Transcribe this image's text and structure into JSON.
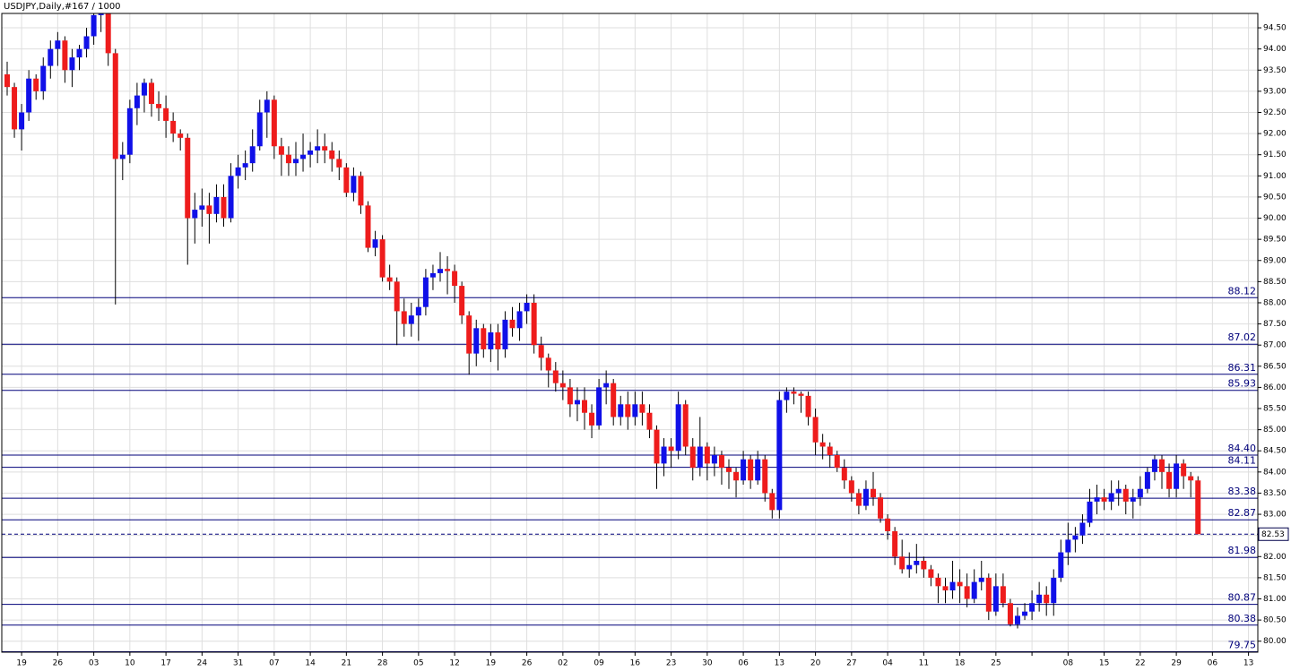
{
  "chart_data": {
    "type": "candlestick",
    "title": "USDJPY,Daily,#167 / 1000",
    "up_color": "#1010e8",
    "down_color": "#ee1c1c",
    "wick_color": "#000000",
    "level_color": "#00007a",
    "grid": true,
    "ylim": [
      79.74,
      94.84
    ],
    "yticks": [
      {
        "value": 80,
        "label": "80.00"
      },
      {
        "value": 80.5,
        "label": "80.50"
      },
      {
        "value": 81,
        "label": "81.00"
      },
      {
        "value": 81.5,
        "label": "81.50"
      },
      {
        "value": 82,
        "label": "82.00"
      },
      {
        "value": 82.5,
        "label": "82.50"
      },
      {
        "value": 83,
        "label": "83.00"
      },
      {
        "value": 83.5,
        "label": "83.50"
      },
      {
        "value": 84,
        "label": "84.00"
      },
      {
        "value": 84.5,
        "label": "84.50"
      },
      {
        "value": 85,
        "label": "85.00"
      },
      {
        "value": 85.5,
        "label": "85.50"
      },
      {
        "value": 86,
        "label": "86.00"
      },
      {
        "value": 86.5,
        "label": "86.50"
      },
      {
        "value": 87,
        "label": "87.00"
      },
      {
        "value": 87.5,
        "label": "87.50"
      },
      {
        "value": 88,
        "label": "88.00"
      },
      {
        "value": 88.5,
        "label": "88.50"
      },
      {
        "value": 89,
        "label": "89.00"
      },
      {
        "value": 89.5,
        "label": "89.50"
      },
      {
        "value": 90,
        "label": "90.00"
      },
      {
        "value": 90.5,
        "label": "90.50"
      },
      {
        "value": 91,
        "label": "91.00"
      },
      {
        "value": 91.5,
        "label": "91.50"
      },
      {
        "value": 92,
        "label": "92.00"
      },
      {
        "value": 92.5,
        "label": "92.50"
      },
      {
        "value": 93,
        "label": "93.00"
      },
      {
        "value": 93.5,
        "label": "93.50"
      },
      {
        "value": 94,
        "label": "94.00"
      },
      {
        "value": 94.5,
        "label": "94.50"
      }
    ],
    "xticks": [
      {
        "value": 2,
        "label": "19"
      },
      {
        "value": 7,
        "label": "26"
      },
      {
        "value": 12,
        "label": "03"
      },
      {
        "value": 17,
        "label": "10"
      },
      {
        "value": 22,
        "label": "17"
      },
      {
        "value": 27,
        "label": "24"
      },
      {
        "value": 32,
        "label": "31"
      },
      {
        "value": 37,
        "label": "07"
      },
      {
        "value": 42,
        "label": "14"
      },
      {
        "value": 47,
        "label": "21"
      },
      {
        "value": 52,
        "label": "28"
      },
      {
        "value": 57,
        "label": "05"
      },
      {
        "value": 62,
        "label": "12"
      },
      {
        "value": 67,
        "label": "19"
      },
      {
        "value": 72,
        "label": "26"
      },
      {
        "value": 77,
        "label": "02"
      },
      {
        "value": 82,
        "label": "09"
      },
      {
        "value": 87,
        "label": "16"
      },
      {
        "value": 92,
        "label": "23"
      },
      {
        "value": 97,
        "label": "30"
      },
      {
        "value": 102,
        "label": "06"
      },
      {
        "value": 107,
        "label": "13"
      },
      {
        "value": 112,
        "label": "20"
      },
      {
        "value": 117,
        "label": "27"
      },
      {
        "value": 122,
        "label": "04"
      },
      {
        "value": 127,
        "label": "11"
      },
      {
        "value": 132,
        "label": "18"
      },
      {
        "value": 137,
        "label": "25"
      },
      {
        "value": 142,
        "label": null
      },
      {
        "value": 147,
        "label": "08"
      },
      {
        "value": 152,
        "label": "15"
      },
      {
        "value": 157,
        "label": "22"
      },
      {
        "value": 162,
        "label": "29"
      },
      {
        "value": 167,
        "label": "06"
      },
      {
        "value": 172,
        "label": "13"
      }
    ],
    "levels": [
      88.12,
      87.02,
      86.31,
      85.93,
      {
        "value": 84.4,
        "label": "84.40"
      },
      84.11,
      83.38,
      82.87,
      81.98,
      80.87,
      80.38,
      79.75
    ],
    "current": 82.53,
    "ohlc": [
      [
        93.4,
        93.7,
        92.9,
        93.1
      ],
      [
        93.1,
        93.2,
        91.9,
        92.1
      ],
      [
        92.1,
        92.7,
        91.6,
        92.5
      ],
      [
        92.5,
        93.5,
        92.3,
        93.3
      ],
      [
        93.3,
        93.4,
        92.8,
        93.0
      ],
      [
        93.0,
        93.8,
        92.8,
        93.6
      ],
      [
        93.6,
        94.2,
        93.3,
        94.0
      ],
      [
        94.0,
        94.4,
        93.6,
        94.2
      ],
      [
        94.2,
        94.3,
        93.2,
        93.5
      ],
      [
        93.5,
        94.0,
        93.1,
        93.8
      ],
      [
        93.8,
        94.1,
        93.5,
        94.0
      ],
      [
        94.0,
        94.5,
        93.8,
        94.3
      ],
      [
        94.3,
        94.9,
        94.1,
        94.8
      ],
      [
        94.8,
        94.95,
        94.4,
        94.9
      ],
      [
        94.9,
        94.9,
        93.6,
        93.9
      ],
      [
        93.9,
        94.0,
        87.96,
        91.4
      ],
      [
        91.4,
        91.8,
        90.9,
        91.5
      ],
      [
        91.5,
        92.8,
        91.3,
        92.6
      ],
      [
        92.6,
        93.2,
        92.2,
        92.9
      ],
      [
        92.9,
        93.3,
        92.5,
        93.2
      ],
      [
        93.2,
        93.3,
        92.4,
        92.7
      ],
      [
        92.7,
        93.0,
        92.3,
        92.6
      ],
      [
        92.6,
        92.9,
        91.9,
        92.3
      ],
      [
        92.3,
        92.5,
        91.8,
        92.0
      ],
      [
        92.0,
        92.1,
        91.6,
        91.9
      ],
      [
        91.9,
        92.0,
        88.9,
        90.0
      ],
      [
        90.0,
        90.6,
        89.4,
        90.2
      ],
      [
        90.2,
        90.7,
        89.8,
        90.3
      ],
      [
        90.3,
        90.6,
        89.4,
        90.1
      ],
      [
        90.1,
        90.8,
        89.9,
        90.5
      ],
      [
        90.5,
        90.8,
        89.8,
        90.0
      ],
      [
        90.0,
        91.3,
        89.9,
        91.0
      ],
      [
        91.0,
        91.5,
        90.7,
        91.2
      ],
      [
        91.2,
        91.6,
        90.9,
        91.3
      ],
      [
        91.3,
        92.1,
        91.1,
        91.7
      ],
      [
        91.7,
        92.8,
        91.6,
        92.5
      ],
      [
        92.5,
        93.0,
        91.9,
        92.8
      ],
      [
        92.8,
        92.9,
        91.4,
        91.7
      ],
      [
        91.7,
        91.9,
        91.0,
        91.5
      ],
      [
        91.5,
        91.7,
        91.0,
        91.3
      ],
      [
        91.3,
        91.8,
        91.0,
        91.4
      ],
      [
        91.4,
        92.0,
        91.1,
        91.5
      ],
      [
        91.5,
        91.8,
        91.2,
        91.6
      ],
      [
        91.6,
        92.1,
        91.3,
        91.7
      ],
      [
        91.7,
        92.0,
        91.3,
        91.6
      ],
      [
        91.6,
        91.8,
        91.1,
        91.4
      ],
      [
        91.4,
        91.6,
        90.9,
        91.2
      ],
      [
        91.2,
        91.3,
        90.5,
        90.6
      ],
      [
        90.6,
        91.2,
        90.4,
        91.0
      ],
      [
        91.0,
        91.1,
        90.1,
        90.3
      ],
      [
        90.3,
        90.4,
        89.2,
        89.3
      ],
      [
        89.3,
        89.7,
        89.1,
        89.5
      ],
      [
        89.5,
        89.6,
        88.5,
        88.6
      ],
      [
        88.6,
        88.9,
        88.3,
        88.5
      ],
      [
        88.5,
        88.6,
        87.0,
        87.8
      ],
      [
        87.8,
        88.1,
        87.2,
        87.5
      ],
      [
        87.5,
        88.0,
        87.2,
        87.7
      ],
      [
        87.7,
        88.1,
        87.1,
        87.9
      ],
      [
        87.9,
        88.8,
        87.7,
        88.6
      ],
      [
        88.6,
        88.9,
        88.3,
        88.7
      ],
      [
        88.7,
        89.2,
        88.5,
        88.8
      ],
      [
        88.8,
        89.1,
        88.2,
        88.75
      ],
      [
        88.75,
        88.9,
        88.0,
        88.4
      ],
      [
        88.4,
        88.5,
        87.5,
        87.7
      ],
      [
        87.7,
        87.8,
        86.3,
        86.8
      ],
      [
        86.8,
        87.6,
        86.5,
        87.4
      ],
      [
        87.4,
        87.5,
        86.7,
        86.9
      ],
      [
        86.9,
        87.5,
        86.6,
        87.3
      ],
      [
        87.3,
        87.5,
        86.4,
        86.9
      ],
      [
        86.9,
        87.8,
        86.7,
        87.6
      ],
      [
        87.6,
        87.9,
        87.2,
        87.4
      ],
      [
        87.4,
        88.0,
        87.1,
        87.8
      ],
      [
        87.8,
        88.2,
        87.5,
        88.0
      ],
      [
        88.0,
        88.2,
        86.8,
        87.0
      ],
      [
        87.0,
        87.2,
        86.4,
        86.7
      ],
      [
        86.7,
        86.8,
        86.0,
        86.4
      ],
      [
        86.4,
        86.6,
        85.9,
        86.1
      ],
      [
        86.1,
        86.4,
        85.7,
        86.0
      ],
      [
        86.0,
        86.2,
        85.3,
        85.6
      ],
      [
        85.6,
        86.0,
        85.2,
        85.7
      ],
      [
        85.7,
        86.0,
        85.0,
        85.4
      ],
      [
        85.4,
        85.6,
        84.8,
        85.1
      ],
      [
        85.1,
        86.2,
        85.0,
        86.0
      ],
      [
        86.0,
        86.4,
        85.6,
        86.1
      ],
      [
        86.1,
        86.2,
        85.1,
        85.3
      ],
      [
        85.3,
        85.8,
        85.1,
        85.6
      ],
      [
        85.6,
        85.9,
        85.0,
        85.3
      ],
      [
        85.3,
        85.9,
        85.1,
        85.6
      ],
      [
        85.6,
        85.9,
        85.1,
        85.4
      ],
      [
        85.4,
        85.6,
        84.8,
        85.0
      ],
      [
        85.0,
        85.1,
        83.6,
        84.2
      ],
      [
        84.2,
        84.8,
        83.9,
        84.6
      ],
      [
        84.6,
        84.8,
        84.1,
        84.5
      ],
      [
        84.5,
        85.9,
        84.3,
        85.6
      ],
      [
        85.6,
        85.7,
        84.4,
        84.6
      ],
      [
        84.6,
        84.8,
        83.8,
        84.1
      ],
      [
        84.1,
        85.3,
        83.9,
        84.6
      ],
      [
        84.6,
        84.7,
        83.8,
        84.2
      ],
      [
        84.2,
        84.6,
        83.9,
        84.4
      ],
      [
        84.4,
        84.5,
        83.7,
        84.1
      ],
      [
        84.1,
        84.3,
        83.6,
        84.0
      ],
      [
        84.0,
        84.1,
        83.4,
        83.8
      ],
      [
        83.8,
        84.5,
        83.7,
        84.3
      ],
      [
        84.3,
        84.4,
        83.6,
        83.8
      ],
      [
        83.8,
        84.5,
        83.7,
        84.3
      ],
      [
        84.3,
        84.4,
        83.3,
        83.5
      ],
      [
        83.5,
        83.6,
        82.9,
        83.1
      ],
      [
        83.1,
        85.9,
        82.9,
        85.7
      ],
      [
        85.7,
        86.0,
        85.4,
        85.9
      ],
      [
        85.9,
        86.0,
        85.6,
        85.85
      ],
      [
        85.85,
        85.9,
        85.4,
        85.8
      ],
      [
        85.8,
        85.9,
        85.1,
        85.3
      ],
      [
        85.3,
        85.5,
        84.4,
        84.7
      ],
      [
        84.7,
        84.9,
        84.3,
        84.6
      ],
      [
        84.6,
        84.7,
        84.1,
        84.4
      ],
      [
        84.4,
        84.5,
        84.0,
        84.1
      ],
      [
        84.1,
        84.3,
        83.6,
        83.8
      ],
      [
        83.8,
        83.9,
        83.3,
        83.5
      ],
      [
        83.5,
        83.6,
        83.0,
        83.2
      ],
      [
        83.2,
        83.8,
        83.1,
        83.6
      ],
      [
        83.6,
        84.0,
        83.2,
        83.4
      ],
      [
        83.4,
        83.5,
        82.8,
        82.9
      ],
      [
        82.9,
        83.0,
        82.4,
        82.6
      ],
      [
        82.6,
        82.7,
        81.8,
        82.0
      ],
      [
        82.0,
        82.4,
        81.6,
        81.7
      ],
      [
        81.7,
        82.1,
        81.5,
        81.8
      ],
      [
        81.8,
        82.3,
        81.6,
        81.9
      ],
      [
        81.9,
        82.0,
        81.5,
        81.7
      ],
      [
        81.7,
        81.8,
        81.3,
        81.5
      ],
      [
        81.5,
        81.6,
        80.9,
        81.3
      ],
      [
        81.3,
        81.5,
        80.9,
        81.2
      ],
      [
        81.2,
        81.9,
        81.0,
        81.4
      ],
      [
        81.4,
        81.7,
        80.9,
        81.3
      ],
      [
        81.3,
        81.6,
        80.8,
        81.0
      ],
      [
        81.0,
        81.7,
        80.9,
        81.4
      ],
      [
        81.4,
        81.9,
        81.2,
        81.5
      ],
      [
        81.5,
        81.6,
        80.5,
        80.7
      ],
      [
        80.7,
        81.6,
        80.6,
        81.3
      ],
      [
        81.3,
        81.6,
        80.8,
        80.9
      ],
      [
        80.9,
        81.0,
        80.35,
        80.4
      ],
      [
        80.4,
        80.8,
        80.3,
        80.6
      ],
      [
        80.6,
        80.9,
        80.5,
        80.7
      ],
      [
        80.7,
        81.2,
        80.5,
        80.9
      ],
      [
        80.9,
        81.4,
        80.7,
        81.1
      ],
      [
        81.1,
        81.3,
        80.6,
        80.9
      ],
      [
        80.9,
        81.7,
        80.6,
        81.5
      ],
      [
        81.5,
        82.4,
        81.4,
        82.1
      ],
      [
        82.1,
        82.8,
        81.8,
        82.4
      ],
      [
        82.4,
        82.7,
        82.1,
        82.5
      ],
      [
        82.5,
        83.0,
        82.3,
        82.8
      ],
      [
        82.8,
        83.6,
        82.7,
        83.3
      ],
      [
        83.3,
        83.7,
        83.0,
        83.4
      ],
      [
        83.4,
        83.6,
        83.1,
        83.3
      ],
      [
        83.3,
        83.8,
        83.1,
        83.5
      ],
      [
        83.5,
        83.8,
        83.2,
        83.6
      ],
      [
        83.6,
        83.7,
        83.0,
        83.3
      ],
      [
        83.3,
        83.6,
        82.9,
        83.4
      ],
      [
        83.4,
        83.9,
        83.2,
        83.6
      ],
      [
        83.6,
        84.1,
        83.5,
        84.0
      ],
      [
        84.0,
        84.4,
        83.8,
        84.3
      ],
      [
        84.3,
        84.4,
        83.6,
        84.0
      ],
      [
        84.0,
        84.2,
        83.4,
        83.6
      ],
      [
        83.6,
        84.4,
        83.4,
        84.2
      ],
      [
        84.2,
        84.3,
        83.6,
        83.9
      ],
      [
        83.9,
        84.0,
        83.4,
        83.8
      ],
      [
        83.8,
        83.9,
        82.53,
        82.53
      ]
    ]
  }
}
